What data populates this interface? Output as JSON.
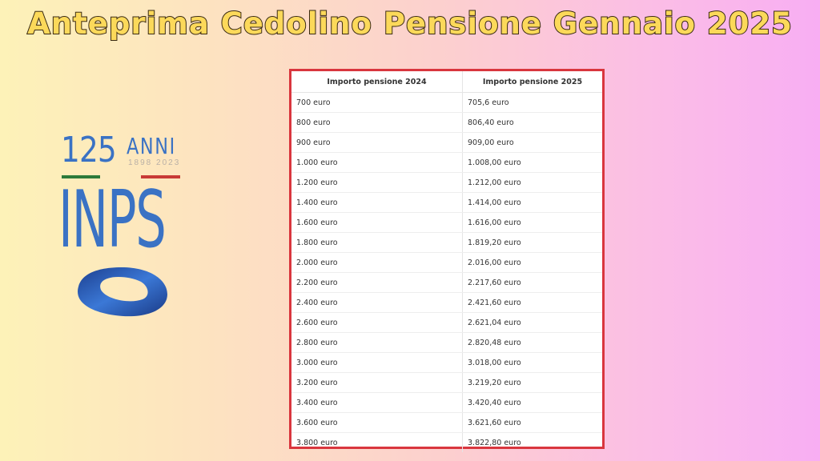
{
  "title": "Anteprima Cedolino Pensione Gennaio 2025",
  "logo": {
    "number": "125",
    "anni": "ANNI",
    "years": "1898  2023",
    "name": "INPS"
  },
  "table": {
    "headers": [
      "Importo pensione 2024",
      "Importo pensione 2025"
    ],
    "rows": [
      [
        "700 euro",
        "705,6 euro"
      ],
      [
        "800 euro",
        "806,40 euro"
      ],
      [
        "900 euro",
        "909,00 euro"
      ],
      [
        "1.000 euro",
        "1.008,00 euro"
      ],
      [
        "1.200 euro",
        "1.212,00 euro"
      ],
      [
        "1.400 euro",
        "1.414,00 euro"
      ],
      [
        "1.600 euro",
        "1.616,00 euro"
      ],
      [
        "1.800 euro",
        "1.819,20 euro"
      ],
      [
        "2.000 euro",
        "2.016,00 euro"
      ],
      [
        "2.200 euro",
        "2.217,60 euro"
      ],
      [
        "2.400 euro",
        "2.421,60 euro"
      ],
      [
        "2.600 euro",
        "2.621,04 euro"
      ],
      [
        "2.800 euro",
        "2.820,48 euro"
      ],
      [
        "3.000 euro",
        "3.018,00 euro"
      ],
      [
        "3.200 euro",
        "3.219,20 euro"
      ],
      [
        "3.400 euro",
        "3.420,40 euro"
      ],
      [
        "3.600 euro",
        "3.621,60 euro"
      ],
      [
        "3.800 euro",
        "3.822,80 euro"
      ]
    ]
  },
  "colors": {
    "brand_blue": "#3a72c4",
    "table_border": "#d9363e",
    "title_fill": "#fcd95a"
  }
}
